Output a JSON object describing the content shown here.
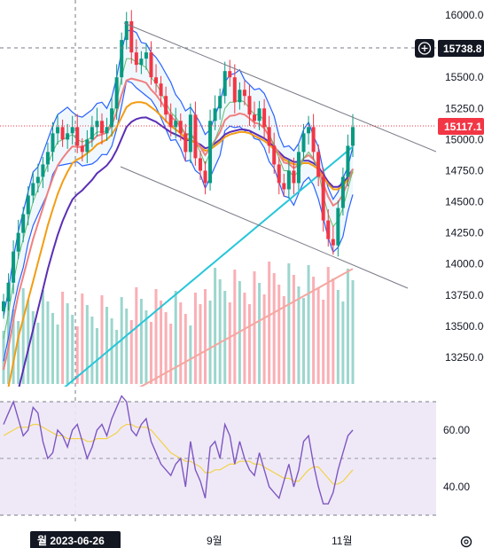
{
  "chart_data": [
    {
      "type": "candlestick",
      "pane": "price",
      "x_labels": [
        "9월",
        "11월"
      ],
      "crosshair_date": "월 2023-06-26",
      "y_ticks": [
        13250,
        13500,
        13750,
        14000,
        14250,
        14500,
        14750,
        15000,
        15250,
        15500,
        15750,
        16000
      ],
      "ylim": [
        13250,
        16000
      ],
      "crosshair_price": "15738.8",
      "last_price": "15117.1",
      "closes": [
        13700,
        13850,
        14100,
        14250,
        14400,
        14550,
        14650,
        14700,
        14800,
        14900,
        15050,
        15100,
        15000,
        15050,
        15100,
        14950,
        14900,
        15000,
        15100,
        15150,
        15050,
        15100,
        15250,
        15500,
        15800,
        15950,
        15700,
        15600,
        15650,
        15700,
        15500,
        15450,
        15350,
        15200,
        15100,
        15150,
        15050,
        14900,
        15200,
        14850,
        14750,
        14650,
        15150,
        15250,
        15350,
        15550,
        15500,
        15300,
        15400,
        15350,
        15200,
        15150,
        15250,
        15100,
        14950,
        14800,
        14650,
        14600,
        14750,
        14650,
        14900,
        15050,
        15100,
        14900,
        14700,
        14350,
        14200,
        14150,
        14450,
        14700,
        14950,
        15100
      ],
      "ma_fast": [
        13400,
        13600,
        13850,
        14050,
        14200,
        14350,
        14500,
        14600,
        14700,
        14800,
        14900,
        14980,
        15000,
        15020,
        15040,
        15000,
        14980,
        15000,
        15020,
        15060,
        15060,
        15070,
        15150,
        15300,
        15500,
        15650,
        15650,
        15620,
        15600,
        15580,
        15500,
        15450,
        15380,
        15300,
        15220,
        15180,
        15120,
        15030,
        15050,
        14980,
        14900,
        14800,
        14900,
        15000,
        15100,
        15250,
        15300,
        15300,
        15320,
        15300,
        15250,
        15200,
        15200,
        15150,
        15050,
        14950,
        14850,
        14750,
        14750,
        14700,
        14750,
        14850,
        14900,
        14850,
        14750,
        14550,
        14400,
        14300,
        14350,
        14450,
        14600,
        14750
      ],
      "ma_slow": [
        12900,
        13050,
        13250,
        13450,
        13600,
        13750,
        13900,
        14050,
        14200,
        14350,
        14480,
        14600,
        14700,
        14780,
        14850,
        14880,
        14900,
        14930,
        14960,
        15000,
        15020,
        15040,
        15080,
        15140,
        15220,
        15300,
        15330,
        15340,
        15340,
        15330,
        15300,
        15270,
        15230,
        15190,
        15150,
        15120,
        15090,
        15050,
        15040,
        15010,
        14980,
        14950,
        14960,
        14990,
        15020,
        15060,
        15080,
        15090,
        15100,
        15100,
        15090,
        15070,
        15050,
        15030,
        15000,
        14960,
        14920,
        14880,
        14860,
        14840,
        14840,
        14850,
        14850,
        14830,
        14800,
        14740,
        14680,
        14640,
        14640,
        14670,
        14720,
        14780
      ]
    },
    {
      "type": "line",
      "pane": "rsi",
      "y_ticks": [
        40,
        60
      ],
      "ylim": [
        30,
        72
      ],
      "band": [
        30,
        70
      ],
      "rsi": [
        62,
        66,
        70,
        64,
        58,
        60,
        68,
        66,
        56,
        50,
        52,
        60,
        58,
        54,
        60,
        62,
        56,
        50,
        54,
        60,
        62,
        58,
        64,
        68,
        72,
        70,
        60,
        58,
        62,
        64,
        56,
        52,
        48,
        46,
        44,
        48,
        50,
        40,
        56,
        46,
        42,
        36,
        54,
        56,
        50,
        62,
        58,
        48,
        56,
        50,
        46,
        44,
        52,
        46,
        40,
        38,
        36,
        42,
        48,
        40,
        46,
        56,
        58,
        48,
        40,
        34,
        34,
        38,
        46,
        52,
        58,
        60
      ],
      "rsi_ma": [
        58,
        59,
        60,
        61,
        61,
        61,
        62,
        62,
        61,
        60,
        59,
        58,
        58,
        57,
        57,
        57,
        57,
        56,
        56,
        57,
        57,
        57,
        58,
        59,
        61,
        62,
        62,
        61,
        61,
        61,
        60,
        58,
        56,
        54,
        52,
        51,
        50,
        49,
        49,
        48,
        47,
        45,
        45,
        46,
        46,
        47,
        48,
        48,
        49,
        49,
        49,
        48,
        48,
        47,
        46,
        45,
        44,
        43,
        43,
        42,
        42,
        44,
        46,
        47,
        47,
        45,
        43,
        41,
        41,
        42,
        44,
        46
      ]
    }
  ],
  "colors": {
    "up": "#089981",
    "down": "#f23645",
    "purple_ma": "#5b2fb5",
    "orange_ma": "#f39c12",
    "pink_ma": "#f08080",
    "cyan_ma": "#26c6da",
    "salmon_ma": "#f4a7a0",
    "bollinger": "#2962ff",
    "rsi_line": "#7e57c2",
    "rsi_ma": "#f2d24b",
    "rsi_band": "#ede7f6",
    "channel": "#787b86"
  },
  "icons": {
    "plus": "plus-circle-icon",
    "settings": "gear-icon"
  }
}
